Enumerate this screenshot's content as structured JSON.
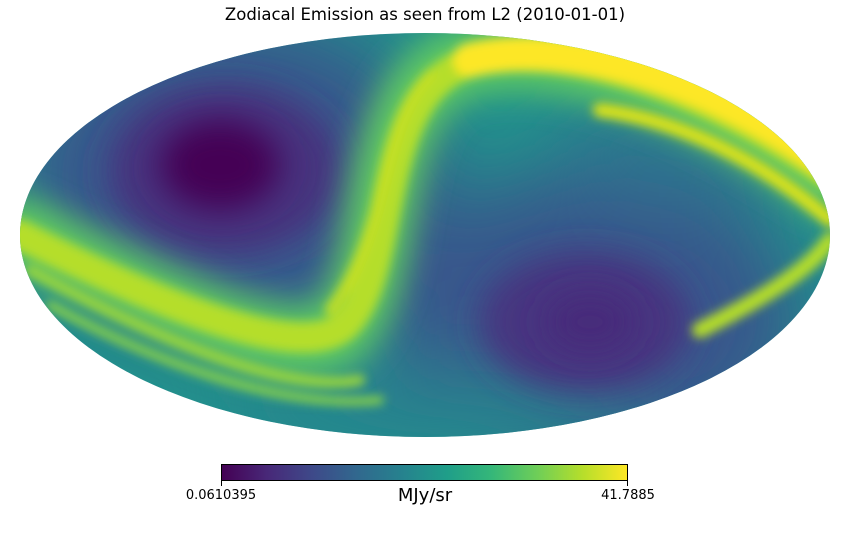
{
  "title": "Zodiacal Emission as seen from L2 (2010-01-01)",
  "projection": "Mollweide",
  "colormap": "viridis",
  "colormap_colors": [
    "#440154",
    "#482878",
    "#3e4989",
    "#31688e",
    "#26828e",
    "#1f9e89",
    "#35b779",
    "#6ece58",
    "#b5de2b",
    "#fde725"
  ],
  "colorbar": {
    "min_label": "0.0610395",
    "max_label": "41.7885",
    "unit": "MJy/sr"
  }
}
